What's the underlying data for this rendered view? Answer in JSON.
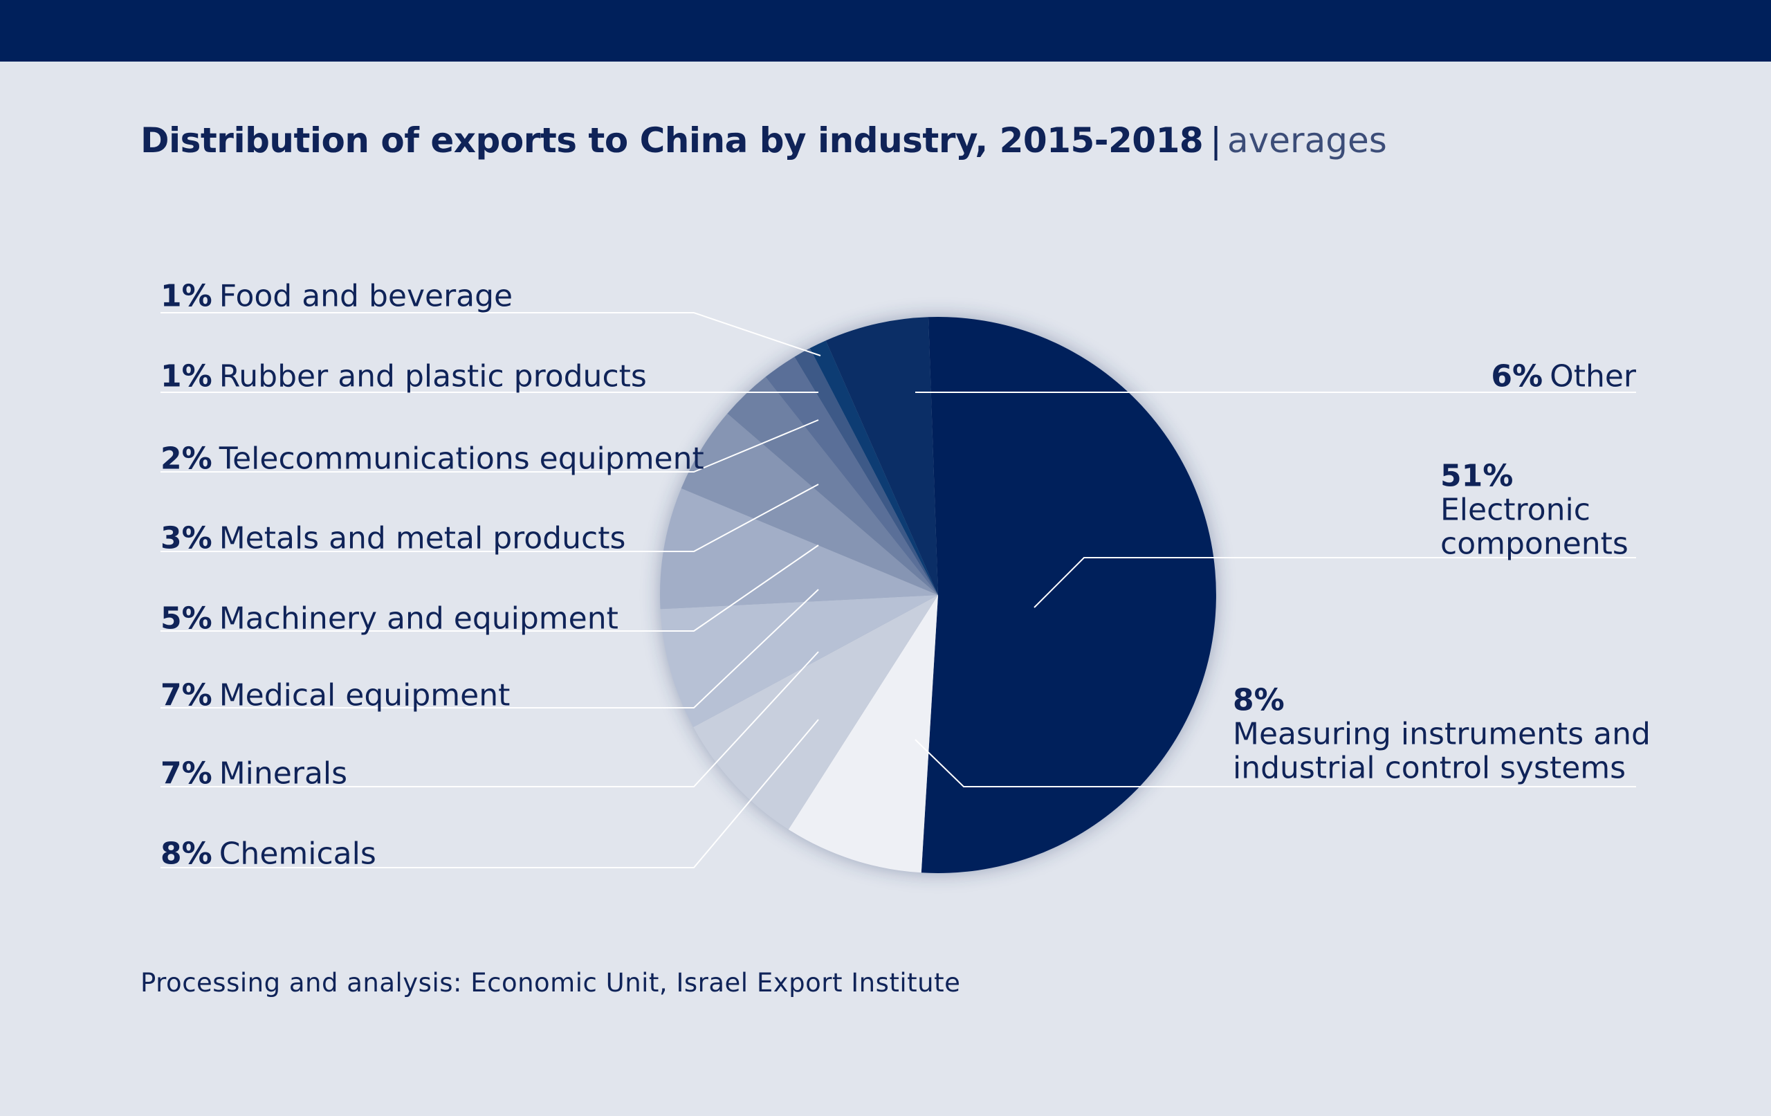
{
  "title": {
    "main": "Distribution of exports to China by industry, 2015-2018",
    "separator": "|",
    "subtitle": "averages"
  },
  "source": "Processing and analysis: Economic Unit, Israel Export Institute",
  "colors": {
    "header_bar": "#00205b",
    "background": "#e1e5ed",
    "text": "#0f2358",
    "leader_line": "#ffffff"
  },
  "chart_data": {
    "type": "pie",
    "title": "Distribution of exports to China by industry, 2015-2018",
    "subtitle": "averages",
    "unit": "%",
    "slices": [
      {
        "label": "Electronic components",
        "value": 51,
        "value_label": "51%",
        "label_lines": [
          "Electronic",
          "components"
        ],
        "color": "#00205b"
      },
      {
        "label": "Measuring instruments and industrial control systems",
        "value": 8,
        "value_label": "8%",
        "label_lines": [
          "Measuring instruments and",
          "industrial control systems"
        ],
        "color": "#eef0f5"
      },
      {
        "label": "Chemicals",
        "value": 8,
        "value_label": "8%",
        "label_lines": [
          "Chemicals"
        ],
        "color": "#c8cfdd"
      },
      {
        "label": "Minerals",
        "value": 7,
        "value_label": "7%",
        "label_lines": [
          "Minerals"
        ],
        "color": "#b7c1d5"
      },
      {
        "label": "Medical equipment",
        "value": 7,
        "value_label": "7%",
        "label_lines": [
          "Medical equipment"
        ],
        "color": "#a2aec7"
      },
      {
        "label": "Machinery and equipment",
        "value": 5,
        "value_label": "5%",
        "label_lines": [
          "Machinery and equipment"
        ],
        "color": "#8695b3"
      },
      {
        "label": "Metals and metal products",
        "value": 3,
        "value_label": "3%",
        "label_lines": [
          "Metals and metal products"
        ],
        "color": "#6e80a3"
      },
      {
        "label": "Telecommunications equipment",
        "value": 2,
        "value_label": "2%",
        "label_lines": [
          "Telecommunications equipment"
        ],
        "color": "#5a6f98"
      },
      {
        "label": "Rubber and plastic products",
        "value": 1,
        "value_label": "1%",
        "label_lines": [
          "Rubber and plastic products"
        ],
        "color": "#3d5987"
      },
      {
        "label": "Food and beverage",
        "value": 1,
        "value_label": "1%",
        "label_lines": [
          "Food and beverage"
        ],
        "color": "#0d3c73"
      },
      {
        "label": "Other",
        "value": 6,
        "value_label": "6%",
        "label_lines": [
          "Other"
        ],
        "color": "#0b2e66"
      }
    ]
  }
}
